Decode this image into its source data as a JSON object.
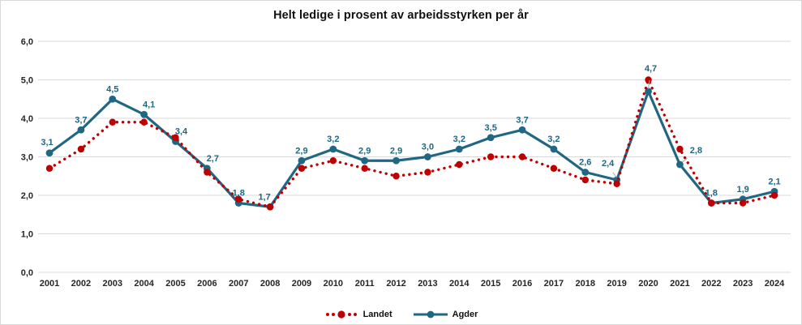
{
  "chart_data": {
    "type": "line",
    "title": "Helt ledige i prosent av arbeidsstyrken per år",
    "categories": [
      "2001",
      "2002",
      "2003",
      "2004",
      "2005",
      "2006",
      "2007",
      "2008",
      "2009",
      "2010",
      "2011",
      "2012",
      "2013",
      "2014",
      "2015",
      "2016",
      "2017",
      "2018",
      "2019",
      "2020",
      "2021",
      "2022",
      "2023",
      "2024"
    ],
    "series": [
      {
        "name": "Landet",
        "color": "#c00000",
        "line_style": "dotted",
        "values": [
          2.7,
          3.2,
          3.9,
          3.9,
          3.5,
          2.6,
          1.9,
          1.7,
          2.7,
          2.9,
          2.7,
          2.5,
          2.6,
          2.8,
          3.0,
          3.0,
          2.7,
          2.4,
          2.3,
          5.0,
          3.2,
          1.8,
          1.8,
          2.0
        ],
        "data_labels_shown": false
      },
      {
        "name": "Agder",
        "color": "#1f6783",
        "line_style": "solid",
        "values": [
          3.1,
          3.7,
          4.5,
          4.1,
          3.4,
          2.7,
          1.8,
          1.7,
          2.9,
          3.2,
          2.9,
          2.9,
          3.0,
          3.2,
          3.5,
          3.7,
          3.2,
          2.6,
          2.4,
          4.7,
          2.8,
          1.8,
          1.9,
          2.1
        ],
        "data_labels_shown": true,
        "labels": [
          "3,1",
          "3,7",
          "4,5",
          "4,1",
          "3,4",
          "2,7",
          "1,8",
          "1,7",
          "2,9",
          "3,2",
          "2,9",
          "2,9",
          "3,0",
          "3,2",
          "3,5",
          "3,7",
          "3,2",
          "2,6",
          "2,4",
          "4,7",
          "2,8",
          "1,8",
          "1,9",
          "2,1"
        ]
      }
    ],
    "y_ticks": [
      "0,0",
      "1,0",
      "2,0",
      "3,0",
      "4,0",
      "5,0",
      "6,0"
    ],
    "ylim": [
      0,
      6
    ],
    "grid": true,
    "legend_position": "bottom",
    "colors": {
      "grid": "#d9d9d9",
      "axis_text": "#262626",
      "label_text": "#1f6783",
      "leader_line": "#a6a6a6"
    }
  }
}
